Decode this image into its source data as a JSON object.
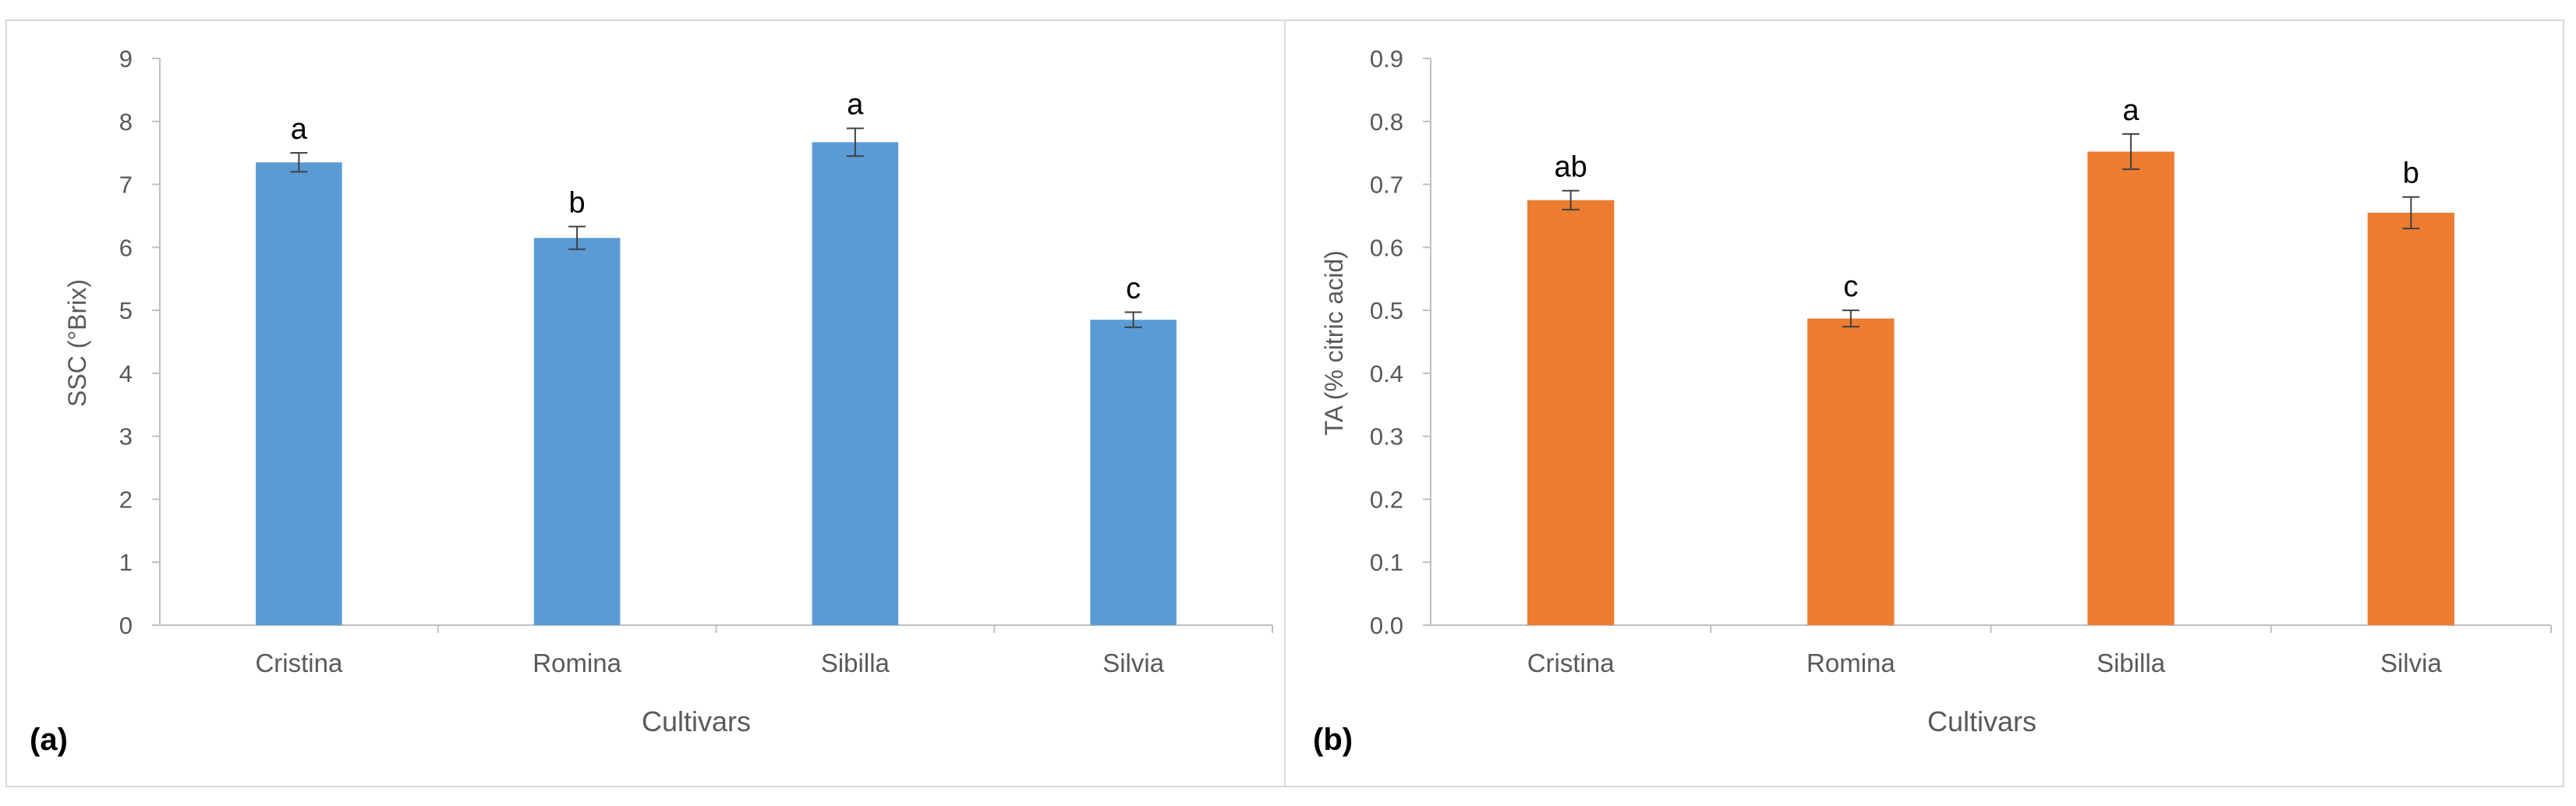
{
  "chart_data": [
    {
      "type": "bar",
      "panel_label": "(a)",
      "categories": [
        "Cristina",
        "Romina",
        "Sibilla",
        "Silvia"
      ],
      "values": [
        7.35,
        6.15,
        7.67,
        4.85
      ],
      "errors": [
        0.15,
        0.18,
        0.22,
        0.12
      ],
      "letters": [
        "a",
        "b",
        "a",
        "c"
      ],
      "title": "",
      "xlabel": "Cultivars",
      "ylabel": "SSC (°Brix)",
      "ylim": [
        0,
        9
      ],
      "yticks": [
        0,
        1,
        2,
        3,
        4,
        5,
        6,
        7,
        8,
        9
      ],
      "ytick_labels": [
        "0",
        "1",
        "2",
        "3",
        "4",
        "5",
        "6",
        "7",
        "8",
        "9"
      ],
      "grid": false,
      "legend": "none",
      "color": "#5b9bd5"
    },
    {
      "type": "bar",
      "panel_label": "(b)",
      "categories": [
        "Cristina",
        "Romina",
        "Sibilla",
        "Silvia"
      ],
      "values": [
        0.675,
        0.487,
        0.752,
        0.655
      ],
      "errors": [
        0.015,
        0.013,
        0.028,
        0.025
      ],
      "letters": [
        "ab",
        "c",
        "a",
        "b"
      ],
      "title": "",
      "xlabel": "Cultivars",
      "ylabel": "TA (% citric acid)",
      "ylim": [
        0,
        0.9
      ],
      "yticks": [
        0,
        0.1,
        0.2,
        0.3,
        0.4,
        0.5,
        0.6,
        0.7,
        0.8,
        0.9
      ],
      "ytick_labels": [
        "0.0",
        "0.1",
        "0.2",
        "0.3",
        "0.4",
        "0.5",
        "0.6",
        "0.7",
        "0.8",
        "0.9"
      ],
      "grid": false,
      "legend": "none",
      "color": "#ed7d31"
    }
  ]
}
